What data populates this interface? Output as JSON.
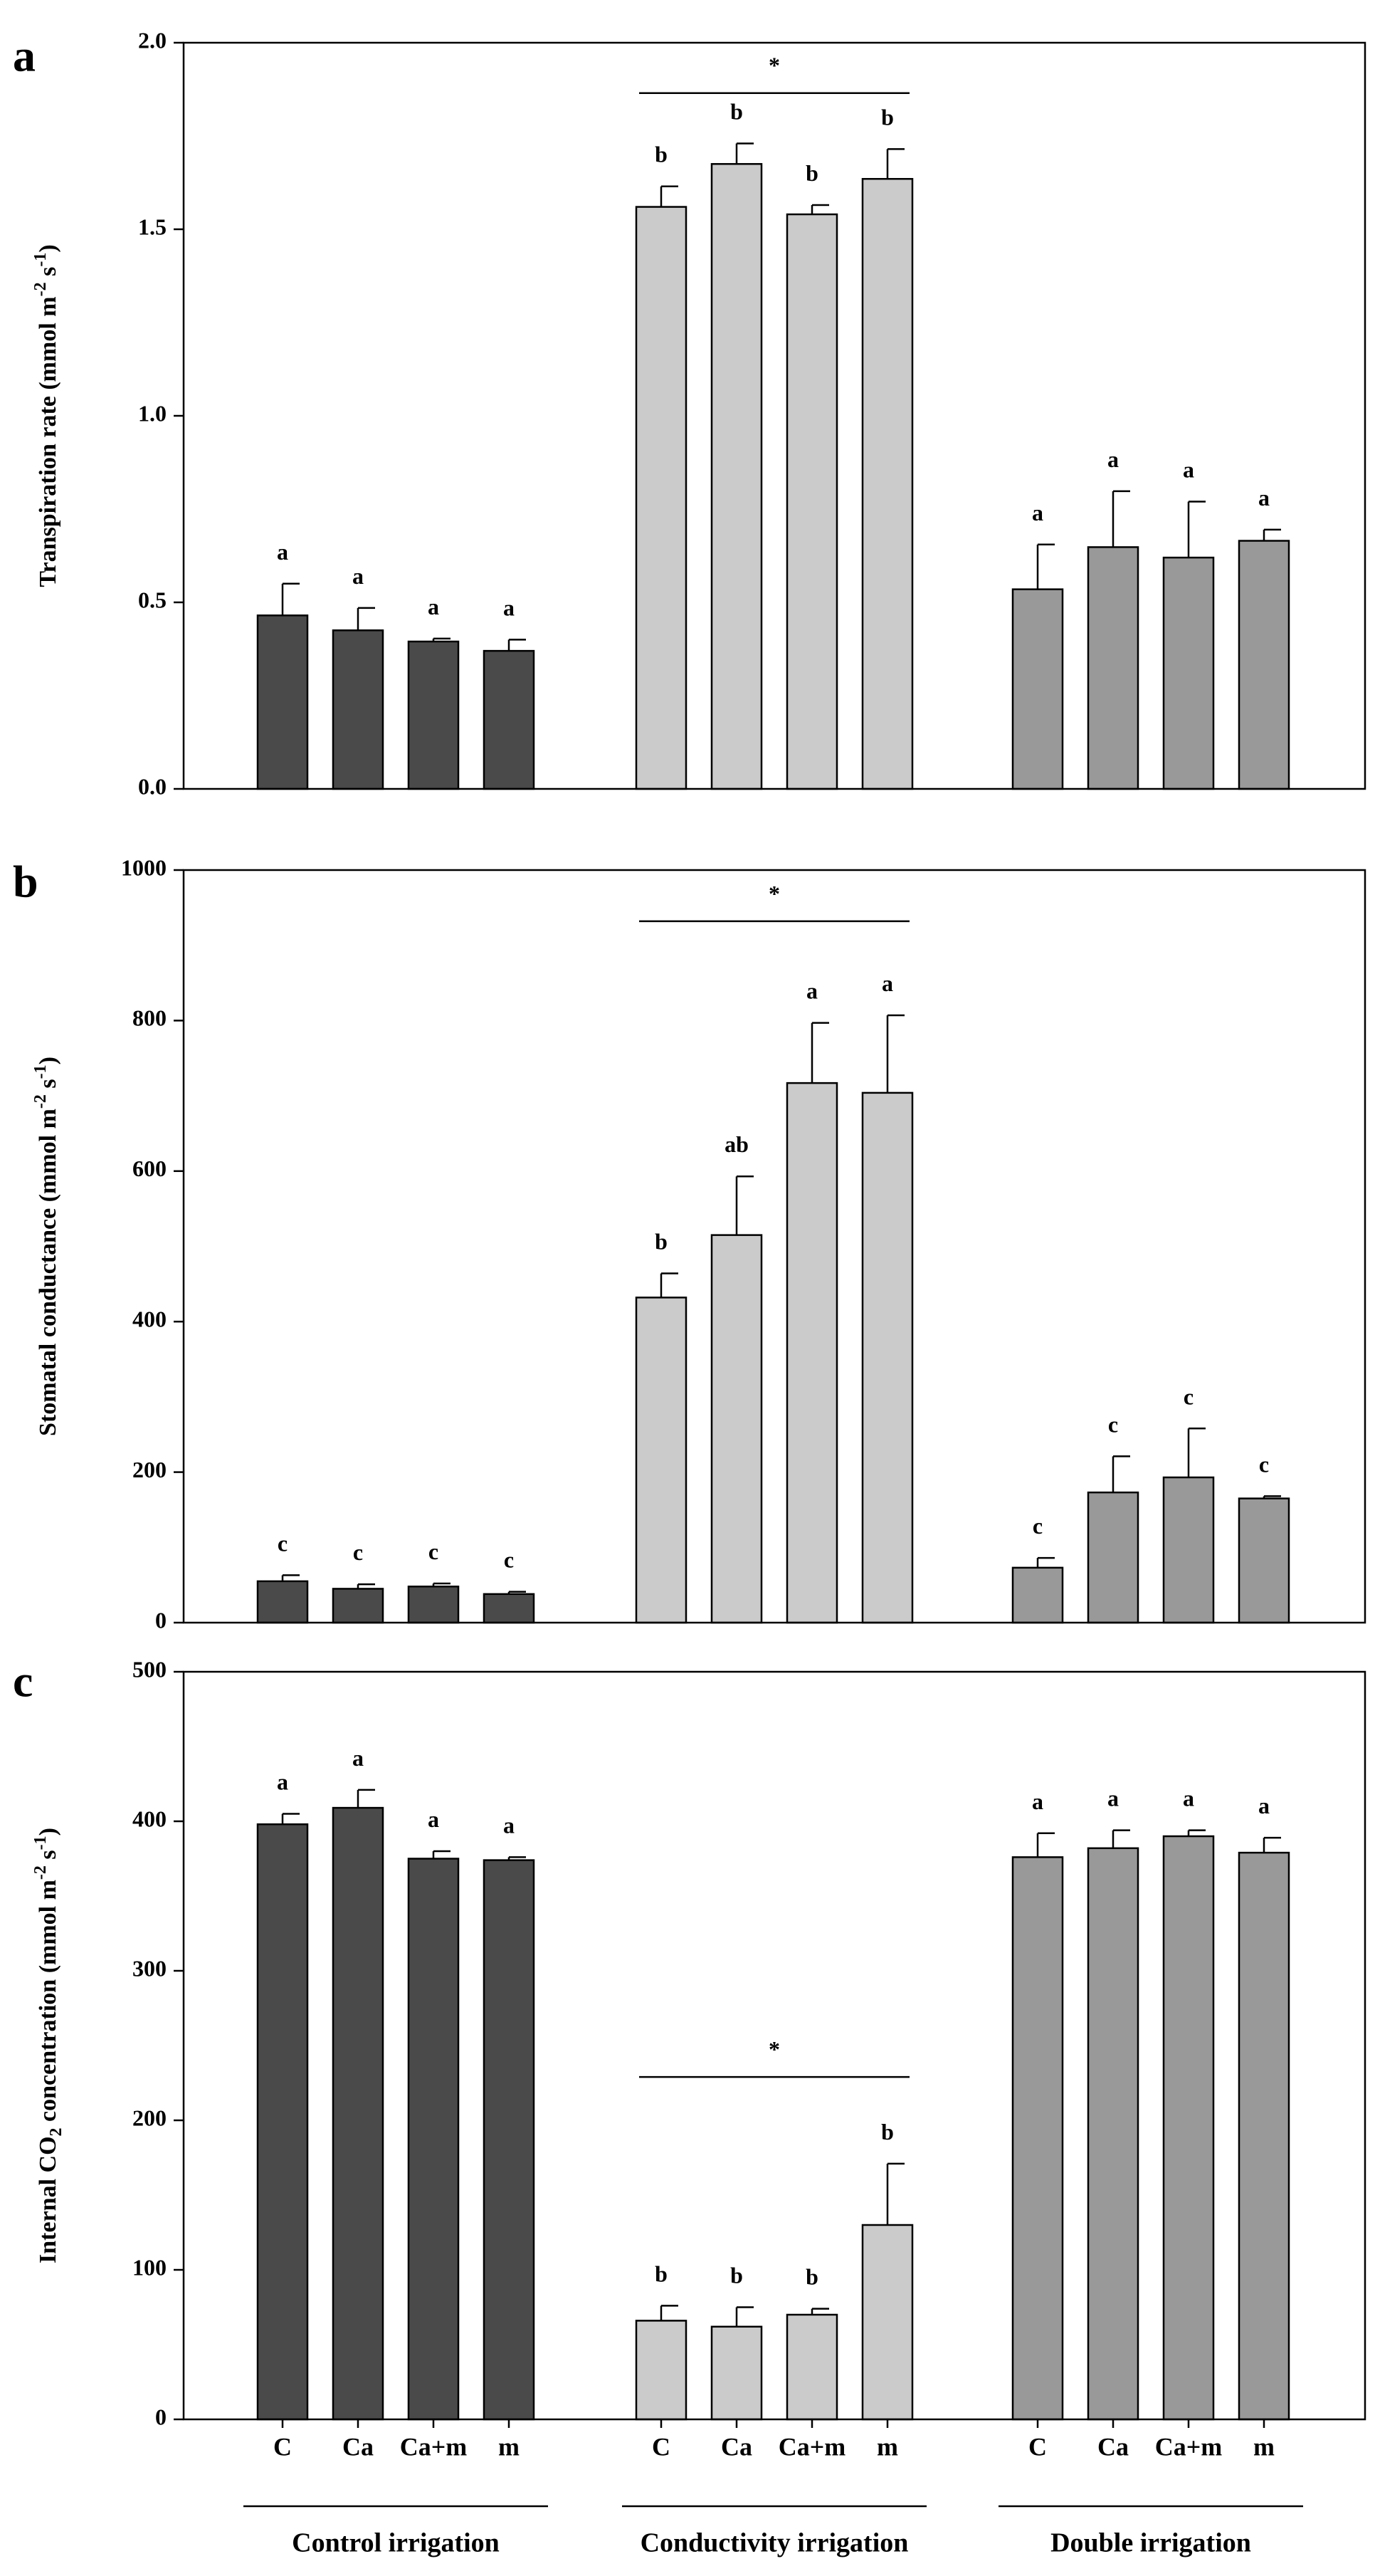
{
  "chart_data": [
    {
      "panel_label": "a",
      "type": "bar",
      "ylabel": "Transpiration rate  (mmol m-2 s-1)",
      "ylabel_main": "Transpiration rate  (mmol m",
      "ylabel_sup1": "-2",
      "ylabel_mid": " s",
      "ylabel_sup2": "-1",
      "ylabel_end": ")",
      "ylim": [
        0,
        2.0
      ],
      "yticks": [
        0,
        0.5,
        1.0,
        1.5,
        2.0
      ],
      "ytick_labels": [
        "0.0",
        "0.5",
        "1.0",
        "1.5",
        "2.0"
      ],
      "categories": [
        "C",
        "Ca",
        "Ca+m",
        "m"
      ],
      "series": [
        {
          "name": "Control irrigation",
          "values": [
            0.465,
            0.425,
            0.395,
            0.37
          ],
          "errors": [
            0.085,
            0.06,
            0.008,
            0.03
          ],
          "letters": [
            "a",
            "a",
            "a",
            "a"
          ]
        },
        {
          "name": "Conductivity irrigation",
          "values": [
            1.56,
            1.675,
            1.54,
            1.635
          ],
          "errors": [
            0.055,
            0.055,
            0.025,
            0.08
          ],
          "letters": [
            "b",
            "b",
            "b",
            "b"
          ]
        },
        {
          "name": "Double irrigation",
          "values": [
            0.535,
            0.648,
            0.62,
            0.665
          ],
          "errors": [
            0.12,
            0.15,
            0.15,
            0.03
          ],
          "letters": [
            "a",
            "a",
            "a",
            "a"
          ]
        }
      ],
      "significance": {
        "group": 1,
        "mark": "*",
        "y": 1.865
      }
    },
    {
      "panel_label": "b",
      "type": "bar",
      "ylabel": "Stomatal conductance (mmol m-2 s-1)",
      "ylabel_main": "Stomatal conductance (mmol m",
      "ylabel_sup1": "-2",
      "ylabel_mid": " s",
      "ylabel_sup2": "-1",
      "ylabel_end": ")",
      "ylim": [
        0,
        1000
      ],
      "yticks": [
        0,
        200,
        400,
        600,
        800,
        1000
      ],
      "ytick_labels": [
        "0",
        "200",
        "400",
        "600",
        "800",
        "1000"
      ],
      "categories": [
        "C",
        "Ca",
        "Ca+m",
        "m"
      ],
      "series": [
        {
          "name": "Control irrigation",
          "values": [
            55,
            45,
            48,
            38
          ],
          "errors": [
            8,
            6,
            4,
            3
          ],
          "letters": [
            "c",
            "c",
            "c",
            "c"
          ]
        },
        {
          "name": "Conductivity irrigation",
          "values": [
            432,
            515,
            717,
            704
          ],
          "errors": [
            32,
            78,
            80,
            103
          ],
          "letters": [
            "b",
            "ab",
            "a",
            "a"
          ]
        },
        {
          "name": "Double irrigation",
          "values": [
            73,
            173,
            193,
            165
          ],
          "errors": [
            13,
            48,
            65,
            3
          ],
          "letters": [
            "c",
            "c",
            "c",
            "c"
          ]
        }
      ],
      "significance": {
        "group": 1,
        "mark": "*",
        "y": 932
      }
    },
    {
      "panel_label": "c",
      "type": "bar",
      "ylabel": "Internal CO2 concentration (mmol m-2 s-1)",
      "ylabel_main": "Internal CO",
      "ylabel_sub": "2",
      "ylabel_main2": " concentration (mmol m",
      "ylabel_sup1": "-2",
      "ylabel_mid": " s",
      "ylabel_sup2": "-1",
      "ylabel_end": ")",
      "ylim": [
        0,
        500
      ],
      "yticks": [
        0,
        100,
        200,
        300,
        400,
        500
      ],
      "ytick_labels": [
        "0",
        "100",
        "200",
        "300",
        "400",
        "500"
      ],
      "categories": [
        "C",
        "Ca",
        "Ca+m",
        "m"
      ],
      "series": [
        {
          "name": "Control irrigation",
          "values": [
            398,
            409,
            375,
            374
          ],
          "errors": [
            7,
            12,
            5,
            2
          ],
          "letters": [
            "a",
            "a",
            "a",
            "a"
          ]
        },
        {
          "name": "Conductivity irrigation",
          "values": [
            66,
            62,
            70,
            130
          ],
          "errors": [
            10,
            13,
            4,
            41
          ],
          "letters": [
            "b",
            "b",
            "b",
            "b"
          ]
        },
        {
          "name": "Double irrigation",
          "values": [
            376,
            382,
            390,
            379
          ],
          "errors": [
            16,
            12,
            4,
            10
          ],
          "letters": [
            "a",
            "a",
            "a",
            "a"
          ]
        }
      ],
      "significance": {
        "group": 1,
        "mark": "*",
        "y": 229
      }
    }
  ],
  "x_axis": {
    "tick_labels": [
      "C",
      "Ca",
      "Ca+m",
      "m"
    ],
    "group_labels": [
      "Control irrigation",
      "Conductivity irrigation",
      "Double irrigation"
    ]
  },
  "colors": {
    "control": "#4a4a4a",
    "conductivity": "#cbcbcb",
    "double": "#999999",
    "axis": "#000000"
  }
}
